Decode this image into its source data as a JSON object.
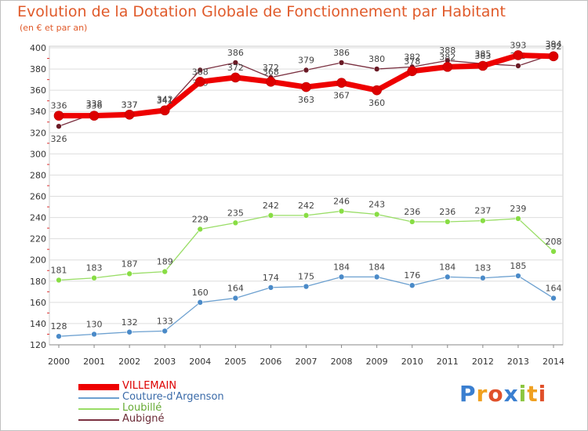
{
  "header": {
    "title": "Evolution de la Dotation Globale de Fonctionnement par Habitant",
    "subtitle": "(en € et par an)"
  },
  "brand": {
    "letters": [
      "P",
      "r",
      "o",
      "x",
      "i",
      "t",
      "i"
    ],
    "colors": [
      "#3a7fd0",
      "#f0a020",
      "#e0502a",
      "#3a7fd0",
      "#8cc63f",
      "#f0a020",
      "#e0502a"
    ]
  },
  "chart_data": {
    "type": "line",
    "title": "Evolution de la Dotation Globale de Fonctionnement par Habitant",
    "subtitle": "(en € et par an)",
    "x": [
      2000,
      2001,
      2002,
      2003,
      2004,
      2005,
      2006,
      2007,
      2008,
      2009,
      2010,
      2011,
      2012,
      2013,
      2014
    ],
    "ylim": [
      120,
      400
    ],
    "yticks": [
      120,
      140,
      160,
      180,
      200,
      220,
      240,
      260,
      280,
      300,
      320,
      340,
      360,
      380,
      400
    ],
    "grid": "y",
    "legend": "bottom-left",
    "series": [
      {
        "name": "VILLEMAIN",
        "color": "#ee0000",
        "values": [
          336,
          336,
          337,
          341,
          368,
          372,
          368,
          363,
          367,
          360,
          378,
          382,
          383,
          393,
          392
        ]
      },
      {
        "name": "Couture-d'Argenson",
        "color": "#6ca0d0",
        "values": [
          128,
          130,
          132,
          133,
          160,
          164,
          174,
          175,
          184,
          184,
          176,
          184,
          183,
          185,
          164
        ]
      },
      {
        "name": "Loubillé",
        "color": "#99dd66",
        "values": [
          181,
          183,
          187,
          189,
          229,
          235,
          242,
          242,
          246,
          243,
          236,
          236,
          237,
          239,
          208
        ]
      },
      {
        "name": "Aubigné",
        "color": "#7a3040",
        "values": [
          326,
          338,
          337,
          342,
          379,
          386,
          372,
          379,
          386,
          380,
          382,
          388,
          385,
          383,
          394
        ]
      }
    ]
  }
}
